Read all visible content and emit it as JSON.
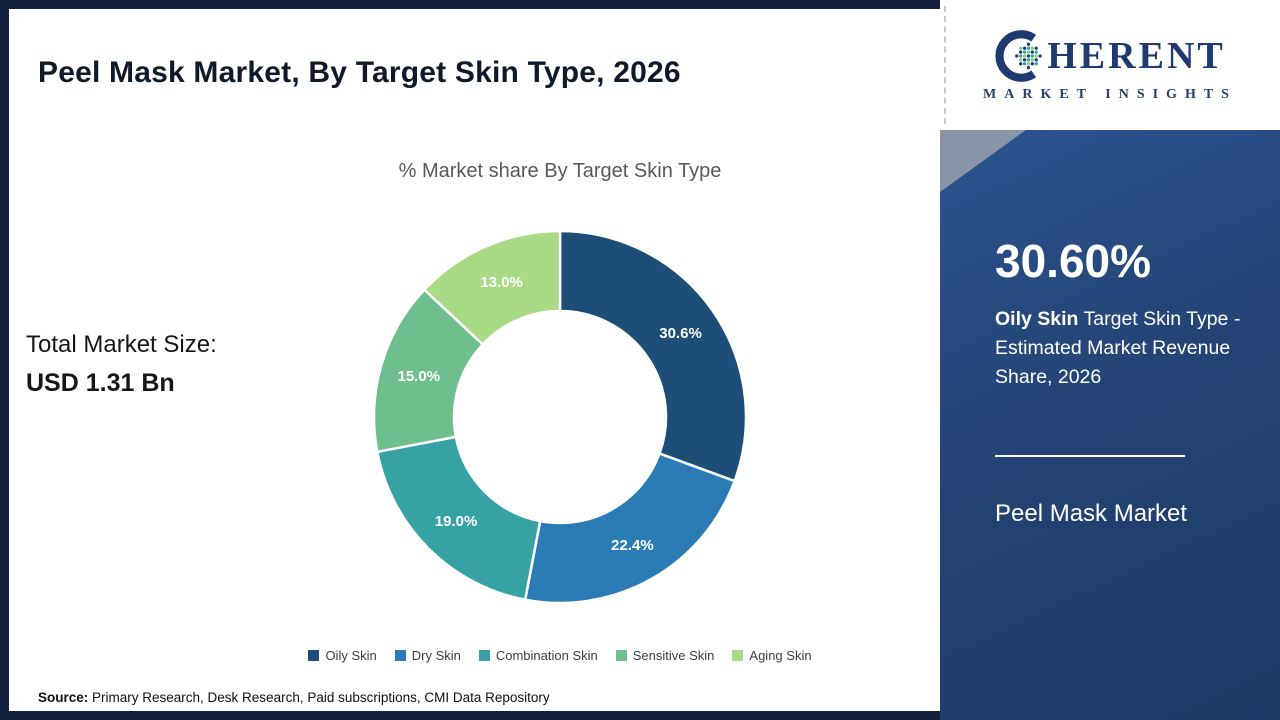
{
  "header": {
    "title": "Peel Mask Market, By Target Skin Type, 2026"
  },
  "logo": {
    "line1_c": "C",
    "line1_rest": "HERENT",
    "line2": "MARKET INSIGHTS"
  },
  "chart_data": {
    "type": "pie",
    "donut": true,
    "title": "% Market share By Target Skin Type",
    "categories": [
      "Oily Skin",
      "Dry Skin",
      "Combination Skin",
      "Sensitive Skin",
      "Aging Skin"
    ],
    "values": [
      30.6,
      22.4,
      19.0,
      15.0,
      13.0
    ],
    "labels": [
      "30.6%",
      "22.4%",
      "19.0%",
      "15.0%",
      "13.0%"
    ],
    "colors": [
      "#1c4e78",
      "#2b7cb5",
      "#37a2a3",
      "#6fbe8d",
      "#a9da85"
    ],
    "legend_position": "bottom"
  },
  "market_size": {
    "label": "Total Market Size:",
    "value": "USD 1.31 Bn"
  },
  "side_panel": {
    "stat_value": "30.60%",
    "stat_highlight": "Oily Skin",
    "stat_rest": " Target Skin Type - Estimated Market Revenue Share, 2026",
    "footer": "Peel Mask Market"
  },
  "source": {
    "label": "Source:",
    "text": " Primary Research, Desk Research, Paid subscriptions, CMI Data Repository"
  }
}
